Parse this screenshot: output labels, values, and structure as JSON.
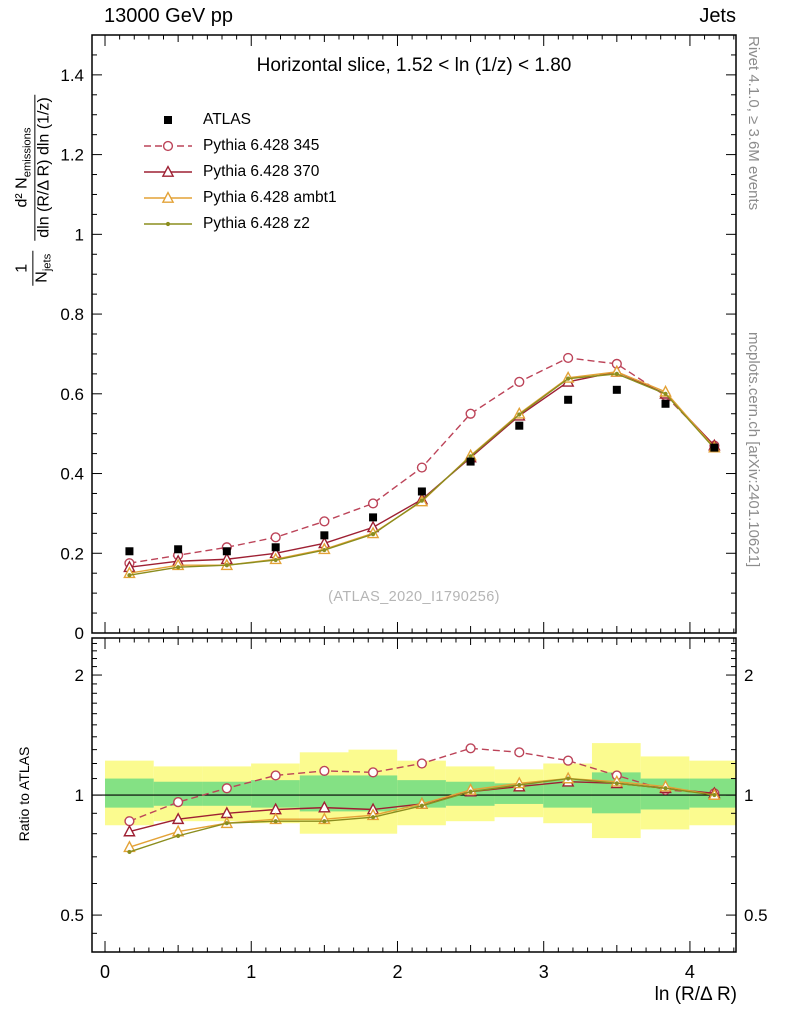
{
  "header": {
    "left": "13000 GeV pp",
    "right": "Jets"
  },
  "panel_title": "Horizontal slice, 1.52 < ln (1/z) < 1.80",
  "watermark": "(ATLAS_2020_I1790256)",
  "side_notes": {
    "top": "Rivet 4.1.0, ≥ 3.6M events",
    "bottom": "mcplots.cern.ch [arXiv:2401.10621]"
  },
  "y_axis_label": {
    "frac1_num": "1",
    "frac1_den_main": "N",
    "frac1_den_sub": "jets",
    "frac2_num_main": "d² N",
    "frac2_num_sub": "emissions",
    "frac2_den": "dln (R/Δ R) dln (1/z)"
  },
  "ratio_axis_label": "Ratio to ATLAS",
  "x_axis_label": "ln (R/Δ R)",
  "legend": [
    {
      "label": "ATLAS",
      "color": "#000000",
      "marker": "square-filled",
      "line": "none"
    },
    {
      "label": "Pythia 6.428 345",
      "color": "#bc4358",
      "marker": "circle-open",
      "line": "dashed"
    },
    {
      "label": "Pythia 6.428 370",
      "color": "#9e2033",
      "marker": "triangle-open",
      "line": "solid"
    },
    {
      "label": "Pythia 6.428 ambt1",
      "color": "#e3a237",
      "marker": "triangle-open",
      "line": "solid"
    },
    {
      "label": "Pythia 6.428 z2",
      "color": "#8b8d1e",
      "marker": "dot",
      "line": "solid"
    }
  ],
  "colors": {
    "band_yellow": "#fbfb8f",
    "band_green": "#84e184",
    "frame": "#000000",
    "ref_line": "#000000",
    "gray_text": "#8c8c8c",
    "watermark": "#b5b5b5"
  },
  "chart_data": {
    "type": "line",
    "title": "Horizontal slice, 1.52 < ln (1/z) < 1.80",
    "xlabel": "ln (R/Δ R)",
    "ylabel": "1/N_jets d²N_emissions / (dln (R/Δ R) dln (1/z))",
    "xlim": [
      -0.089,
      4.315
    ],
    "xticks": {
      "values": [
        0,
        1,
        2,
        3,
        4
      ],
      "labels": [
        "0",
        "1",
        "2",
        "3",
        "4"
      ]
    },
    "x": [
      0.167,
      0.5,
      0.833,
      1.167,
      1.5,
      1.833,
      2.167,
      2.5,
      2.833,
      3.167,
      3.5,
      3.833,
      4.167
    ],
    "bin_width": 0.333,
    "main_panel": {
      "ylim": [
        0,
        1.5
      ],
      "yticks": {
        "values": [
          0,
          0.2,
          0.4,
          0.6,
          0.8,
          1,
          1.2,
          1.4
        ],
        "labels": [
          "0",
          "0.2",
          "0.4",
          "0.6",
          "0.8",
          "1",
          "1.2",
          "1.4"
        ]
      },
      "series": [
        {
          "name": "ATLAS",
          "values": [
            0.205,
            0.21,
            0.205,
            0.215,
            0.245,
            0.29,
            0.355,
            0.43,
            0.52,
            0.585,
            0.61,
            0.575,
            0.465
          ]
        },
        {
          "name": "Pythia 6.428 345",
          "values": [
            0.175,
            0.195,
            0.215,
            0.24,
            0.28,
            0.325,
            0.415,
            0.55,
            0.63,
            0.69,
            0.675,
            0.595,
            0.47
          ]
        },
        {
          "name": "Pythia 6.428 370",
          "values": [
            0.165,
            0.18,
            0.185,
            0.2,
            0.225,
            0.265,
            0.335,
            0.44,
            0.545,
            0.63,
            0.655,
            0.6,
            0.47
          ]
        },
        {
          "name": "Pythia 6.428 ambt1",
          "values": [
            0.15,
            0.17,
            0.17,
            0.185,
            0.21,
            0.25,
            0.33,
            0.445,
            0.55,
            0.64,
            0.655,
            0.605,
            0.465
          ]
        },
        {
          "name": "Pythia 6.428 z2",
          "values": [
            0.145,
            0.165,
            0.17,
            0.183,
            0.208,
            0.248,
            0.332,
            0.443,
            0.548,
            0.638,
            0.65,
            0.6,
            0.463
          ]
        }
      ]
    },
    "ratio_panel": {
      "scale": "log",
      "ylim": [
        0.404,
        2.477
      ],
      "yticks": {
        "values": [
          0.5,
          1,
          2
        ],
        "labels": [
          "0.5",
          "1",
          "2"
        ]
      },
      "reference": 1,
      "series": [
        {
          "name": "Pythia 6.428 345",
          "values": [
            0.86,
            0.96,
            1.04,
            1.12,
            1.15,
            1.14,
            1.2,
            1.31,
            1.28,
            1.22,
            1.12,
            1.03,
            1.01
          ]
        },
        {
          "name": "Pythia 6.428 370",
          "values": [
            0.81,
            0.87,
            0.9,
            0.92,
            0.93,
            0.92,
            0.95,
            1.02,
            1.05,
            1.08,
            1.07,
            1.04,
            1.01
          ]
        },
        {
          "name": "Pythia 6.428 ambt1",
          "values": [
            0.74,
            0.81,
            0.85,
            0.87,
            0.87,
            0.89,
            0.95,
            1.03,
            1.07,
            1.1,
            1.08,
            1.05,
            1.0
          ]
        },
        {
          "name": "Pythia 6.428 z2",
          "values": [
            0.72,
            0.79,
            0.85,
            0.86,
            0.86,
            0.88,
            0.94,
            1.02,
            1.06,
            1.1,
            1.07,
            1.04,
            1.0
          ]
        }
      ],
      "band_yellow": {
        "lo": [
          0.84,
          0.86,
          0.86,
          0.85,
          0.8,
          0.8,
          0.84,
          0.86,
          0.88,
          0.85,
          0.78,
          0.82,
          0.84
        ],
        "hi": [
          1.22,
          1.18,
          1.18,
          1.2,
          1.28,
          1.3,
          1.22,
          1.18,
          1.16,
          1.2,
          1.35,
          1.25,
          1.22
        ]
      },
      "band_green": {
        "lo": [
          0.93,
          0.94,
          0.94,
          0.93,
          0.91,
          0.91,
          0.93,
          0.94,
          0.95,
          0.93,
          0.9,
          0.92,
          0.93
        ],
        "hi": [
          1.1,
          1.08,
          1.08,
          1.09,
          1.12,
          1.12,
          1.09,
          1.08,
          1.07,
          1.09,
          1.14,
          1.1,
          1.1
        ]
      }
    }
  }
}
